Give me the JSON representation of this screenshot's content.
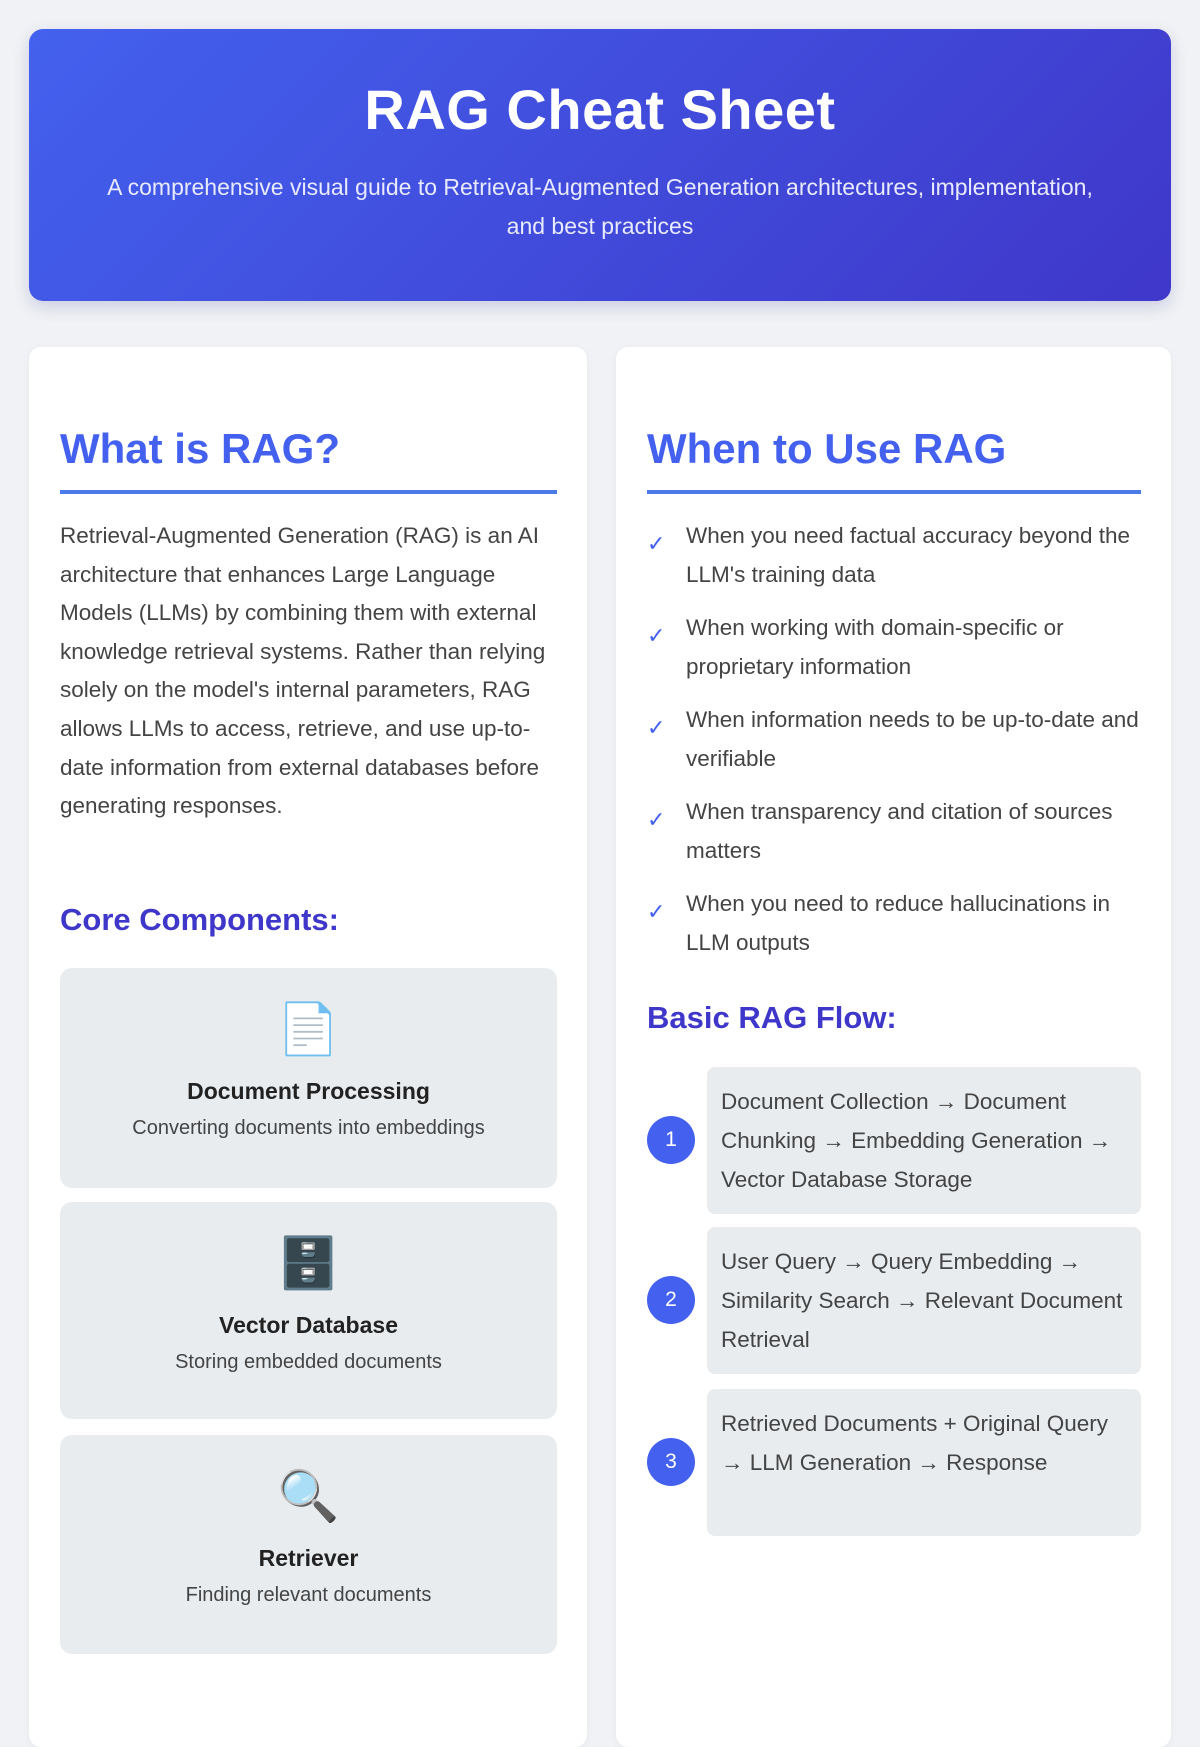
{
  "header": {
    "title": "RAG Cheat Sheet",
    "subtitle": "A comprehensive visual guide to Retrieval-Augmented Generation architectures, implementation, and best practices"
  },
  "what": {
    "title": "What is RAG?",
    "body": "Retrieval-Augmented Generation (RAG) is an AI architecture that enhances Large Language Models (LLMs) by combining them with external knowledge retrieval systems. Rather than relying solely on the model's internal parameters, RAG allows LLMs to access, retrieve, and use up-to-date information from external databases before generating responses.",
    "components_title": "Core Components:",
    "components": [
      {
        "icon": "📄",
        "icon_name": "document-icon",
        "title": "Document Processing",
        "desc": "Converting documents into embeddings"
      },
      {
        "icon": "🗄️",
        "icon_name": "file-cabinet-icon",
        "title": "Vector Database",
        "desc": "Storing embedded documents"
      },
      {
        "icon": "🔍",
        "icon_name": "magnifier-icon",
        "title": "Retriever",
        "desc": "Finding relevant documents"
      }
    ]
  },
  "when": {
    "title": "When to Use RAG",
    "check": "✓",
    "items": [
      "When you need factual accuracy beyond the LLM's training data",
      "When working with domain-specific or proprietary information",
      "When information needs to be up-to-date and verifiable",
      "When transparency and citation of sources matters",
      "When you need to reduce hallucinations in LLM outputs"
    ],
    "flow_title": "Basic RAG Flow:",
    "flow": [
      {
        "num": "1",
        "text": "Document Collection → Document Chunking → Embedding Generation → Vector Database Storage"
      },
      {
        "num": "2",
        "text": "User Query → Query Embedding → Similarity Search → Relevant Document Retrieval"
      },
      {
        "num": "3",
        "text": "Retrieved Documents + Original Query → LLM Generation → Response"
      }
    ]
  },
  "colors": {
    "accent": "#4361ee",
    "accent_dark": "#3f37c9",
    "panel": "#e9ecef"
  }
}
